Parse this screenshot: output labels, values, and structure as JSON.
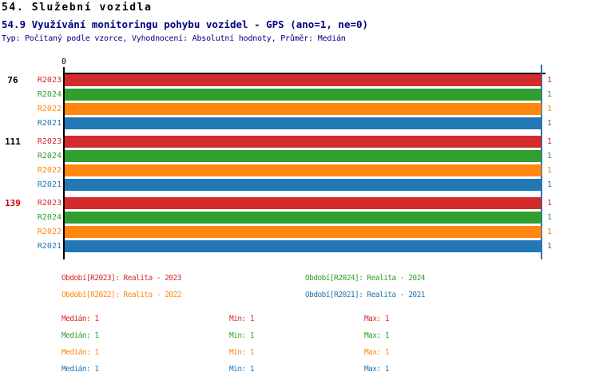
{
  "header": {
    "title_line1": "54. Služební vozidla",
    "title_line2": "54.9 Využívání monitoringu pohybu vozidel - GPS (ano=1, ne=0)",
    "subtitle": "Typ: Počítaný podle vzorce, Vyhodnocení: Absolutní hodnoty, Průměr: Medián"
  },
  "colors": {
    "series_red": "#d32b2b",
    "series_green": "#2fa02f",
    "series_orange": "#ff870e",
    "series_blue": "#2277b5",
    "title_accent": "#000080",
    "axis": "#000000",
    "median_line": "#2277b5",
    "group_label_default": "#000000",
    "group_label_highlight": "#d40000"
  },
  "chart_data": {
    "type": "bar",
    "orientation": "horizontal",
    "title": "54.9 Využívání monitoringu pohybu vozidel - GPS (ano=1, ne=0)",
    "xlabel": "",
    "ylabel": "",
    "xlim": [
      0,
      1
    ],
    "x_tick_labels": [
      "0"
    ],
    "grid": false,
    "median_marker_x": 1,
    "series_order": [
      "R2023",
      "R2024",
      "R2022",
      "R2021"
    ],
    "series_colors": {
      "R2023": "#d32b2b",
      "R2024": "#2fa02f",
      "R2022": "#ff870e",
      "R2021": "#2277b5"
    },
    "groups": [
      {
        "label": "76",
        "label_color": "#000000",
        "values": {
          "R2023": 1,
          "R2024": 1,
          "R2022": 1,
          "R2021": 1
        }
      },
      {
        "label": "111",
        "label_color": "#000000",
        "values": {
          "R2023": 1,
          "R2024": 1,
          "R2022": 1,
          "R2021": 1
        }
      },
      {
        "label": "139",
        "label_color": "#d40000",
        "values": {
          "R2023": 1,
          "R2024": 1,
          "R2022": 1,
          "R2021": 1
        }
      }
    ]
  },
  "x_axis": {
    "tick_label": "0"
  },
  "legend": {
    "items": [
      {
        "series": "R2023",
        "label": "Období[R2023]: Realita - 2023",
        "color": "#d32b2b"
      },
      {
        "series": "R2024",
        "label": "Období[R2024]: Realita - 2024",
        "color": "#2fa02f"
      },
      {
        "series": "R2022",
        "label": "Období[R2022]: Realita - 2022",
        "color": "#ff870e"
      },
      {
        "series": "R2021",
        "label": "Období[R2021]: Realita - 2021",
        "color": "#2277b5"
      }
    ]
  },
  "stats": {
    "rows": [
      {
        "series": "R2023",
        "color": "#d32b2b",
        "median": "Medián: 1",
        "min": "Min: 1",
        "max": "Max: 1"
      },
      {
        "series": "R2024",
        "color": "#2fa02f",
        "median": "Medián: 1",
        "min": "Min: 1",
        "max": "Max: 1"
      },
      {
        "series": "R2022",
        "color": "#ff870e",
        "median": "Medián: 1",
        "min": "Min: 1",
        "max": "Max: 1"
      },
      {
        "series": "R2021",
        "color": "#2277b5",
        "median": "Medián: 1",
        "min": "Min: 1",
        "max": "Max: 1"
      }
    ]
  }
}
